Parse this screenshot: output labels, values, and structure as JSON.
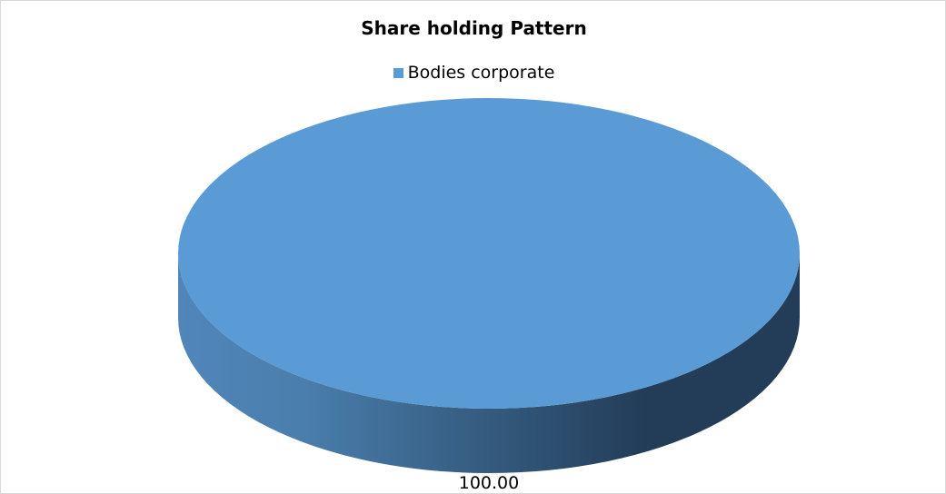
{
  "chart_data": {
    "type": "pie",
    "style": "3d",
    "title": "Share holding Pattern",
    "legend_position": "top",
    "categories": [
      "Bodies corporate"
    ],
    "values": [
      100.0
    ],
    "data_labels": [
      "100.00"
    ],
    "colors": [
      "#5b9bd5"
    ],
    "side_colors": [
      "#5086bb",
      "#233d58"
    ]
  }
}
